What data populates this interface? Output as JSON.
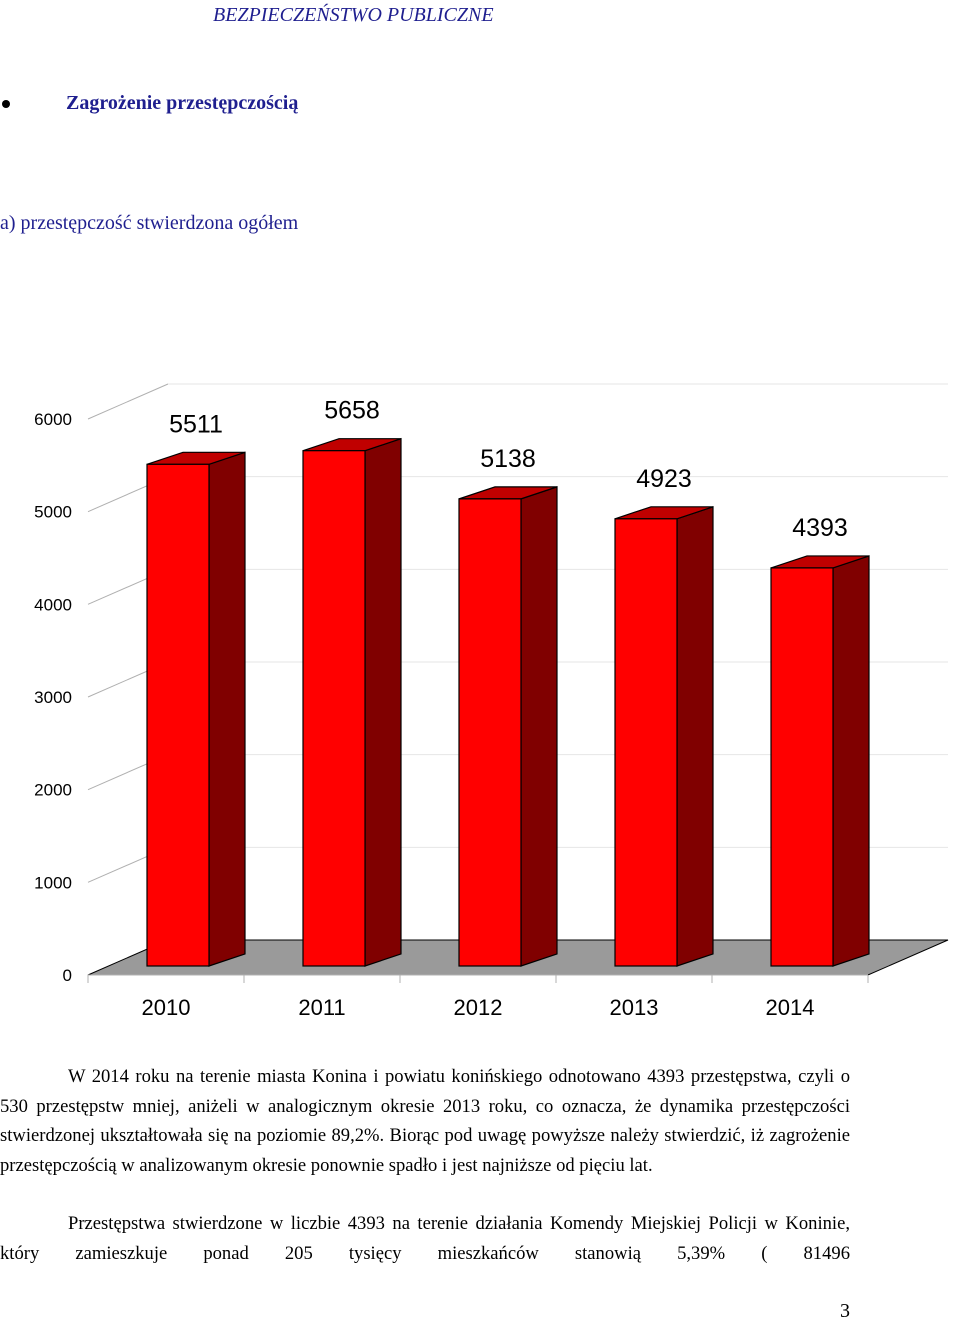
{
  "header": {
    "title": "BEZPIECZEŃSTWO PUBLICZNE"
  },
  "section": {
    "bullet_title": "Zagrożenie przestępczością"
  },
  "subsection": {
    "title": "a) przestępczość stwierdzona ogółem"
  },
  "chart_data": {
    "type": "bar",
    "categories": [
      "2010",
      "2011",
      "2012",
      "2013",
      "2014"
    ],
    "values": [
      5511,
      5658,
      5138,
      4923,
      4393
    ],
    "value_labels": [
      "5511",
      "5658",
      "5138",
      "4923",
      "4393"
    ],
    "yticks": [
      "0",
      "1000",
      "2000",
      "3000",
      "4000",
      "5000",
      "6000"
    ],
    "ylim": [
      0,
      6000
    ],
    "grid": true,
    "style": "3d-column",
    "colors": {
      "front": "#ff0000",
      "side": "#800000",
      "top": "#c00000",
      "floor": "#9a9a9a",
      "grid": "#b0b0b0"
    }
  },
  "body": {
    "paragraph1": "W 2014 roku na terenie miasta Konina i powiatu konińskiego odnotowano 4393 przestępstwa, czyli o 530 przestępstw mniej, aniżeli w analogicznym okresie 2013 roku, co oznacza, że dynamika przestępczości stwierdzonej ukształtowała się na poziomie 89,2%. Biorąc pod uwagę powyższe należy stwierdzić, iż zagrożenie przestępczością w analizowanym okresie ponownie spadło i jest najniższe od pięciu lat.",
    "paragraph2": "Przestępstwa stwierdzone w liczbie 4393 na terenie działania Komendy Miejskiej Policji w Koninie, który zamieszkuje ponad 205 tysięcy mieszkańców stanowią 5,39% ( 81496"
  },
  "footer": {
    "page_number": "3"
  }
}
